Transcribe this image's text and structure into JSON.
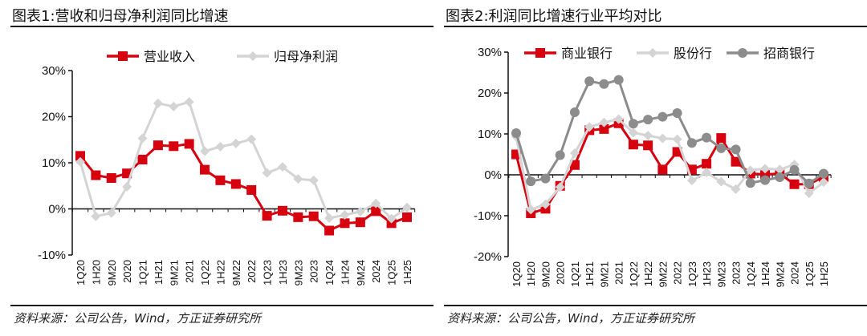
{
  "charts": [
    {
      "title": "图表1:营收和归母净利润同比增速",
      "source": "资料来源：公司公告，Wind，方正证券研究所"
    },
    {
      "title": "图表2:利润同比增速行业平均对比",
      "source": "资料来源：公司公告，Wind，方正证券研究所"
    }
  ],
  "chart_data": [
    {
      "type": "line",
      "categories": [
        "1Q20",
        "1H20",
        "9M20",
        "2020",
        "1Q21",
        "1H21",
        "9M21",
        "2021",
        "1Q22",
        "1H22",
        "9M22",
        "2022",
        "1Q23",
        "1H23",
        "9M23",
        "2023",
        "1Q24",
        "1H24",
        "9M24",
        "2024",
        "1Q25",
        "1H25"
      ],
      "ylim": [
        -10,
        30
      ],
      "yticks": [
        "-10%",
        "0%",
        "10%",
        "20%",
        "30%"
      ],
      "legend_position": "top",
      "series": [
        {
          "name": "营业收入",
          "color": "#d7000f",
          "marker": "square",
          "values": [
            11.5,
            7.3,
            6.7,
            7.7,
            10.7,
            13.8,
            13.6,
            14.1,
            8.5,
            6.2,
            5.4,
            4.1,
            -1.5,
            -0.4,
            -1.8,
            -1.6,
            -4.7,
            -3.1,
            -2.9,
            -0.5,
            -3.1,
            -1.8
          ]
        },
        {
          "name": "归母净利润",
          "color": "#d4d4d4",
          "marker": "diamond",
          "values": [
            10.2,
            -1.6,
            -0.9,
            4.8,
            15.3,
            22.9,
            22.2,
            23.2,
            12.5,
            13.5,
            14.2,
            15.1,
            7.8,
            9.1,
            6.5,
            6.2,
            -2.0,
            -1.3,
            -0.6,
            1.2,
            -2.1,
            0.3
          ]
        }
      ]
    },
    {
      "type": "line",
      "categories": [
        "1Q20",
        "1H20",
        "9M20",
        "2020",
        "1Q21",
        "1H21",
        "9M21",
        "2021",
        "1Q22",
        "1H22",
        "9M22",
        "2022",
        "1Q23",
        "1H23",
        "9M23",
        "2023",
        "1Q24",
        "1H24",
        "9M24",
        "2024",
        "1Q25",
        "1H25"
      ],
      "ylim": [
        -20,
        30
      ],
      "yticks": [
        "-20%",
        "-10%",
        "0%",
        "10%",
        "20%",
        "30%"
      ],
      "legend_position": "top",
      "series": [
        {
          "name": "商业银行",
          "color": "#d7000f",
          "marker": "square",
          "values": [
            5.0,
            -9.4,
            -8.3,
            -2.7,
            2.4,
            10.9,
            11.2,
            12.6,
            7.4,
            7.2,
            1.3,
            5.6,
            1.3,
            2.7,
            9.0,
            3.2,
            0.3,
            0.1,
            0.3,
            -2.3,
            -2.3,
            -0.5
          ]
        },
        {
          "name": "股份行",
          "color": "#d4d4d4",
          "marker": "diamond",
          "values": [
            9.3,
            -8.5,
            -7.2,
            -3.0,
            5.3,
            11.7,
            12.8,
            13.6,
            10.3,
            9.6,
            8.9,
            8.7,
            -1.4,
            0.6,
            -1.7,
            -3.5,
            1.1,
            1.5,
            1.3,
            2.5,
            -4.5,
            -1.8
          ]
        },
        {
          "name": "招商银行",
          "color": "#8c8c8c",
          "marker": "circle",
          "values": [
            10.2,
            -1.6,
            -0.9,
            4.8,
            15.3,
            22.9,
            22.2,
            23.2,
            12.5,
            13.5,
            14.2,
            15.1,
            7.8,
            9.1,
            6.5,
            6.2,
            -2.0,
            -1.3,
            -0.6,
            1.2,
            -2.1,
            0.3
          ]
        }
      ]
    }
  ]
}
